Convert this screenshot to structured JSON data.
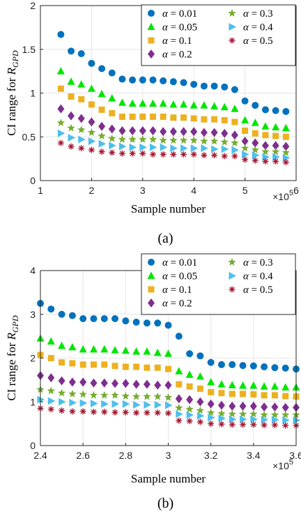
{
  "chart_data": [
    {
      "type": "scatter",
      "panel_label": "(a)",
      "xlabel": "Sample number",
      "x_exponent": "×10^5",
      "ylabel": "CI range for R_GPD",
      "xlim": [
        1,
        6
      ],
      "ylim": [
        0,
        2
      ],
      "xticks": [
        1,
        2,
        3,
        4,
        5,
        6
      ],
      "yticks": [
        0,
        0.5,
        1,
        1.5,
        2
      ],
      "ytick_labels": [
        "0",
        "0.5",
        "1",
        "1.5",
        "2"
      ],
      "grid": true,
      "legend_position": "top-right",
      "x": [
        1.4,
        1.6,
        1.8,
        2.0,
        2.2,
        2.4,
        2.6,
        2.8,
        3.0,
        3.2,
        3.4,
        3.6,
        3.8,
        4.0,
        4.2,
        4.4,
        4.6,
        4.8,
        5.0,
        5.2,
        5.4,
        5.6,
        5.8
      ],
      "series": [
        {
          "name": "α = 0.01",
          "marker": "circle",
          "color": "#0072BD",
          "values": [
            1.67,
            1.48,
            1.45,
            1.34,
            1.28,
            1.23,
            1.16,
            1.15,
            1.15,
            1.15,
            1.14,
            1.13,
            1.12,
            1.1,
            1.08,
            1.08,
            1.07,
            1.04,
            0.91,
            0.86,
            0.81,
            0.8,
            0.79
          ]
        },
        {
          "name": "α = 0.05",
          "marker": "triangle-up",
          "color": "#00E600",
          "values": [
            1.25,
            1.13,
            1.1,
            1.05,
            0.99,
            0.94,
            0.89,
            0.88,
            0.88,
            0.88,
            0.88,
            0.87,
            0.87,
            0.86,
            0.86,
            0.85,
            0.84,
            0.82,
            0.69,
            0.66,
            0.62,
            0.61,
            0.6
          ]
        },
        {
          "name": "α = 0.1",
          "marker": "square",
          "color": "#EDB120",
          "values": [
            1.05,
            0.96,
            0.93,
            0.87,
            0.81,
            0.77,
            0.73,
            0.73,
            0.73,
            0.73,
            0.73,
            0.72,
            0.72,
            0.71,
            0.7,
            0.7,
            0.69,
            0.67,
            0.57,
            0.54,
            0.52,
            0.51,
            0.5
          ]
        },
        {
          "name": "α = 0.2",
          "marker": "diamond",
          "color": "#7E2F8E",
          "values": [
            0.82,
            0.74,
            0.71,
            0.67,
            0.62,
            0.59,
            0.57,
            0.57,
            0.57,
            0.57,
            0.56,
            0.56,
            0.56,
            0.56,
            0.55,
            0.55,
            0.54,
            0.52,
            0.45,
            0.43,
            0.4,
            0.4,
            0.39
          ]
        },
        {
          "name": "α = 0.3",
          "marker": "star",
          "color": "#77AC30",
          "values": [
            0.66,
            0.6,
            0.58,
            0.55,
            0.51,
            0.48,
            0.47,
            0.47,
            0.47,
            0.47,
            0.46,
            0.46,
            0.46,
            0.46,
            0.45,
            0.45,
            0.44,
            0.43,
            0.37,
            0.35,
            0.33,
            0.33,
            0.32
          ]
        },
        {
          "name": "α = 0.4",
          "marker": "triangle-right",
          "color": "#4DBEEE",
          "values": [
            0.54,
            0.49,
            0.47,
            0.45,
            0.42,
            0.4,
            0.39,
            0.38,
            0.38,
            0.38,
            0.38,
            0.37,
            0.37,
            0.37,
            0.37,
            0.36,
            0.36,
            0.35,
            0.3,
            0.29,
            0.27,
            0.27,
            0.26
          ]
        },
        {
          "name": "α = 0.5",
          "marker": "asterisk",
          "color": "#A2142F",
          "values": [
            0.43,
            0.39,
            0.37,
            0.35,
            0.33,
            0.32,
            0.31,
            0.31,
            0.31,
            0.3,
            0.3,
            0.3,
            0.3,
            0.3,
            0.29,
            0.29,
            0.28,
            0.28,
            0.24,
            0.23,
            0.22,
            0.22,
            0.21
          ]
        }
      ]
    },
    {
      "type": "scatter",
      "panel_label": "(b)",
      "xlabel": "Sample number",
      "x_exponent": "×10^5",
      "ylabel": "CI range for R_GPD",
      "xlim": [
        2.4,
        3.6
      ],
      "ylim": [
        0,
        4
      ],
      "xticks": [
        2.4,
        2.6,
        2.8,
        3.0,
        3.2,
        3.4,
        3.6
      ],
      "xtick_labels": [
        "2.4",
        "2.6",
        "2.8",
        "3",
        "3.2",
        "3.4",
        "3.6"
      ],
      "yticks": [
        0,
        1,
        2,
        3,
        4
      ],
      "ytick_labels": [
        "0",
        "1",
        "2",
        "3",
        "4"
      ],
      "grid": true,
      "legend_position": "top-right",
      "x": [
        2.4,
        2.45,
        2.5,
        2.55,
        2.6,
        2.65,
        2.7,
        2.75,
        2.8,
        2.85,
        2.9,
        2.95,
        3.0,
        3.05,
        3.1,
        3.15,
        3.2,
        3.25,
        3.3,
        3.35,
        3.4,
        3.45,
        3.5,
        3.55,
        3.6
      ],
      "series": [
        {
          "name": "α = 0.01",
          "marker": "circle",
          "color": "#0072BD",
          "values": [
            3.25,
            3.12,
            3.0,
            2.97,
            2.9,
            2.9,
            2.9,
            2.9,
            2.85,
            2.82,
            2.8,
            2.8,
            2.75,
            2.5,
            2.1,
            2.05,
            1.9,
            1.85,
            1.85,
            1.83,
            1.82,
            1.8,
            1.78,
            1.77,
            1.75
          ]
        },
        {
          "name": "α = 0.05",
          "marker": "triangle-up",
          "color": "#00E600",
          "values": [
            2.45,
            2.38,
            2.28,
            2.25,
            2.2,
            2.2,
            2.2,
            2.18,
            2.17,
            2.15,
            2.15,
            2.12,
            2.1,
            1.7,
            1.62,
            1.58,
            1.45,
            1.4,
            1.38,
            1.37,
            1.37,
            1.35,
            1.35,
            1.33,
            1.33
          ]
        },
        {
          "name": "α = 0.1",
          "marker": "square",
          "color": "#EDB120",
          "values": [
            2.07,
            2.0,
            1.9,
            1.88,
            1.85,
            1.85,
            1.85,
            1.82,
            1.8,
            1.8,
            1.78,
            1.78,
            1.75,
            1.4,
            1.35,
            1.3,
            1.22,
            1.2,
            1.18,
            1.18,
            1.17,
            1.15,
            1.15,
            1.13,
            1.12
          ]
        },
        {
          "name": "α = 0.2",
          "marker": "diamond",
          "color": "#7E2F8E",
          "values": [
            1.6,
            1.55,
            1.48,
            1.45,
            1.45,
            1.43,
            1.43,
            1.42,
            1.42,
            1.4,
            1.4,
            1.38,
            1.38,
            1.07,
            1.05,
            1.0,
            0.95,
            0.92,
            0.9,
            0.9,
            0.9,
            0.88,
            0.88,
            0.87,
            0.87
          ]
        },
        {
          "name": "α = 0.3",
          "marker": "star",
          "color": "#77AC30",
          "values": [
            1.28,
            1.25,
            1.2,
            1.18,
            1.17,
            1.15,
            1.15,
            1.15,
            1.13,
            1.12,
            1.12,
            1.12,
            1.1,
            0.86,
            0.83,
            0.8,
            0.75,
            0.73,
            0.72,
            0.72,
            0.72,
            0.7,
            0.7,
            0.7,
            0.7
          ]
        },
        {
          "name": "α = 0.4",
          "marker": "triangle-right",
          "color": "#4DBEEE",
          "values": [
            1.05,
            1.02,
            1.0,
            0.98,
            0.97,
            0.96,
            0.95,
            0.95,
            0.95,
            0.93,
            0.93,
            0.93,
            0.92,
            0.72,
            0.7,
            0.68,
            0.64,
            0.62,
            0.6,
            0.6,
            0.6,
            0.59,
            0.59,
            0.58,
            0.58
          ]
        },
        {
          "name": "α = 0.5",
          "marker": "asterisk",
          "color": "#A2142F",
          "values": [
            0.85,
            0.83,
            0.8,
            0.78,
            0.78,
            0.77,
            0.77,
            0.76,
            0.76,
            0.75,
            0.75,
            0.75,
            0.74,
            0.57,
            0.56,
            0.54,
            0.5,
            0.49,
            0.48,
            0.48,
            0.48,
            0.47,
            0.47,
            0.46,
            0.46
          ]
        }
      ]
    }
  ]
}
